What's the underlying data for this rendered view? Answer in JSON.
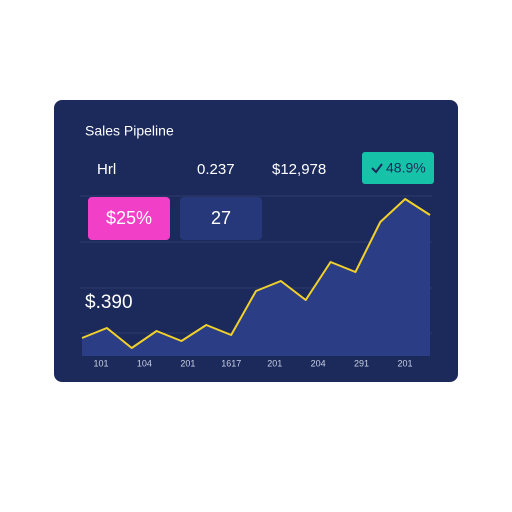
{
  "card": {
    "title": "Sales Pipeline",
    "stats": [
      "Hrl",
      "0.237",
      "$12,978"
    ],
    "badge": "48.9%",
    "tiles": [
      "$25%",
      "27"
    ],
    "big_value": "$.390"
  },
  "chart_data": {
    "type": "area",
    "values": [
      18,
      28,
      8,
      25,
      15,
      31,
      21,
      65,
      75,
      56,
      94,
      84,
      134,
      157,
      141
    ],
    "x_labels": [
      "101",
      "104",
      "201",
      "1617",
      "201",
      "204",
      "291",
      "201"
    ],
    "ylim": [
      0,
      180
    ],
    "line_color": "#f2d12a",
    "fill_color": "#2a3d85"
  }
}
